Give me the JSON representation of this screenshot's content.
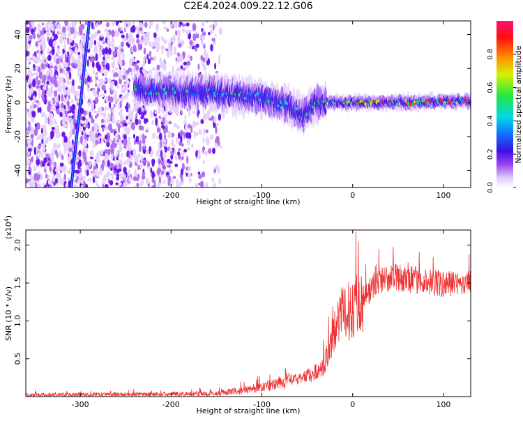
{
  "title": "C2E4.2024.009.22.12.G06",
  "chart_data": [
    {
      "type": "heatmap",
      "xlabel": "Height of straight line (km)",
      "ylabel": "Frequency (Hz)",
      "xlim": [
        -360,
        130
      ],
      "ylim": [
        -50,
        48
      ],
      "xticks": [
        -300,
        -200,
        -100,
        0,
        100
      ],
      "yticks": [
        -40,
        -20,
        0,
        20,
        40
      ],
      "colorbar": {
        "label": "Normalized spectral amplitude",
        "range": [
          0,
          1
        ],
        "ticks": [
          0.0,
          0.2,
          0.4,
          0.6,
          0.8
        ],
        "tick_labels": [
          "0.0",
          "0.2",
          "0.4",
          "0.6",
          "0.8"
        ],
        "colormap": "white-purple-blue-cyan-green-yellow-red-magenta"
      },
      "features": {
        "noise_region_x": [
          -360,
          -145
        ],
        "diagonal_streak": {
          "x_start": -310,
          "y_start": -50,
          "x_end": -290,
          "y_end": 48
        },
        "ridge": [
          {
            "x": -240,
            "y": 8
          },
          {
            "x": -200,
            "y": 6
          },
          {
            "x": -160,
            "y": 6
          },
          {
            "x": -130,
            "y": 4
          },
          {
            "x": -100,
            "y": 3
          },
          {
            "x": -70,
            "y": -2
          },
          {
            "x": -55,
            "y": -8
          },
          {
            "x": -40,
            "y": 0
          },
          {
            "x": -30,
            "y": 0
          },
          {
            "x": 0,
            "y": 0
          },
          {
            "x": 50,
            "y": 0
          },
          {
            "x": 130,
            "y": 1
          }
        ]
      }
    },
    {
      "type": "line",
      "xlabel": "Height of straight line (km)",
      "ylabel": "SNR (10 * v/v)",
      "scale_label": "(x10",
      "scale_exp": "4",
      "scale_close": ")",
      "xlim": [
        -360,
        130
      ],
      "ylim": [
        0,
        2.2
      ],
      "xticks": [
        -300,
        -200,
        -100,
        0,
        100
      ],
      "yticks": [
        0.5,
        1.0,
        1.5,
        2.0
      ],
      "ytick_labels": [
        "0.5",
        "1.0",
        "1.5",
        "2.0"
      ],
      "series": [
        {
          "color": "#ee3030",
          "x": [
            -360,
            -200,
            -150,
            -120,
            -100,
            -80,
            -60,
            -45,
            -35,
            -25,
            -20,
            -15,
            -5,
            5,
            15,
            25,
            35,
            45,
            60,
            80,
            100,
            130
          ],
          "y": [
            0.02,
            0.03,
            0.04,
            0.08,
            0.12,
            0.18,
            0.24,
            0.3,
            0.36,
            0.6,
            0.95,
            1.05,
            1.12,
            1.22,
            1.35,
            1.5,
            1.55,
            1.58,
            1.55,
            1.52,
            1.48,
            1.5
          ]
        }
      ]
    }
  ]
}
